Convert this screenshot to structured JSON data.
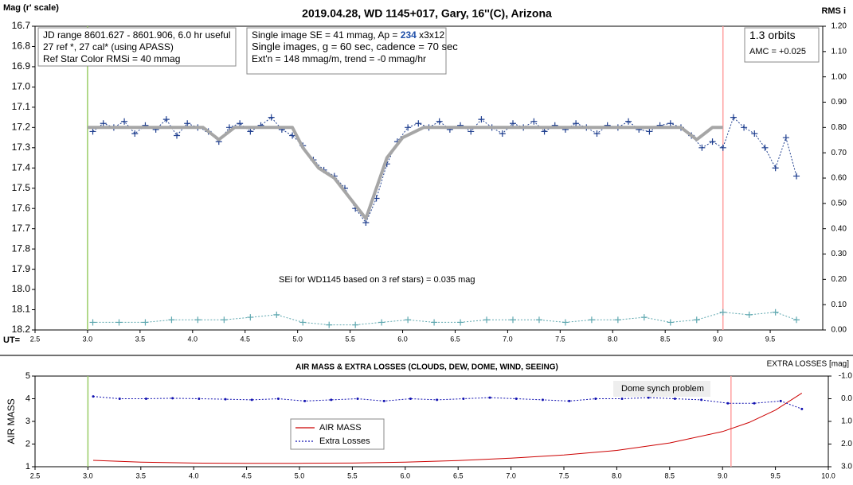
{
  "chart_data": [
    {
      "type": "line",
      "title": "2019.04.28, WD 1145+017, Gary, 16''(C), Arizona",
      "ylabel": "Mag (r' scale)",
      "y2label": "RMS i",
      "xlabel": "UT=",
      "xlim": [
        2.5,
        10
      ],
      "ylim": [
        16.7,
        18.2
      ],
      "y_inverted": true,
      "y2lim": [
        0,
        1.2
      ],
      "xticks": [
        2.5,
        {
          "value": 3,
          "label": "3.0"
        },
        3.5,
        {
          "value": 4,
          "label": "4.0"
        },
        4.5,
        {
          "value": 5,
          "label": "5.0"
        },
        5.5,
        {
          "value": 6,
          "label": "6.0"
        },
        6.5,
        {
          "value": 7,
          "label": "7.0"
        },
        7.5,
        {
          "value": 8,
          "label": "8.0"
        },
        8.5,
        {
          "value": 9,
          "label": "9.0"
        },
        9.5
      ],
      "yticks": [
        16.7,
        16.8,
        16.9,
        {
          "value": 17,
          "label": "17.0"
        },
        17.1,
        17.2,
        17.3,
        17.4,
        17.5,
        17.6,
        17.7,
        17.8,
        17.9,
        {
          "value": 18,
          "label": "18.0"
        },
        18.1,
        18.2
      ],
      "y2ticks": [
        {
          "value": 0,
          "label": "0.00"
        },
        {
          "value": 0.1,
          "label": "0.10"
        },
        {
          "value": 0.2,
          "label": "0.20"
        },
        {
          "value": 0.3,
          "label": "0.30"
        },
        {
          "value": 0.4,
          "label": "0.40"
        },
        {
          "value": 0.5,
          "label": "0.50"
        },
        {
          "value": 0.6,
          "label": "0.60"
        },
        {
          "value": 0.7,
          "label": "0.70"
        },
        {
          "value": 0.8,
          "label": "0.80"
        },
        {
          "value": 0.9,
          "label": "0.90"
        },
        {
          "value": 1,
          "label": "1.00"
        },
        {
          "value": 1.1,
          "label": "1.10"
        },
        {
          "value": 1.2,
          "label": "1.20"
        }
      ],
      "vlines": [
        {
          "x": 3.0,
          "color": "#99cc66"
        },
        {
          "x": 9.05,
          "color": "#ff9f9f"
        }
      ],
      "series": [
        {
          "color": "#1f3f8f",
          "marker": "plus",
          "dashed": true,
          "width": 1,
          "x": [
            3.05,
            3.15,
            3.25,
            3.35,
            3.45,
            3.55,
            3.65,
            3.75,
            3.85,
            3.95,
            4.05,
            4.15,
            4.25,
            4.35,
            4.45,
            4.55,
            4.65,
            4.75,
            4.85,
            4.95,
            5.05,
            5.15,
            5.25,
            5.35,
            5.45,
            5.55,
            5.65,
            5.75,
            5.85,
            5.95,
            6.05,
            6.15,
            6.25,
            6.35,
            6.45,
            6.55,
            6.65,
            6.75,
            6.85,
            6.95,
            7.05,
            7.15,
            7.25,
            7.35,
            7.45,
            7.55,
            7.65,
            7.75,
            7.85,
            7.95,
            8.05,
            8.15,
            8.25,
            8.35,
            8.45,
            8.55,
            8.65,
            8.75,
            8.85,
            8.95,
            9.05,
            9.15,
            9.25,
            9.35,
            9.45,
            9.55,
            9.65,
            9.75
          ],
          "values": [
            17.22,
            17.18,
            17.2,
            17.17,
            17.23,
            17.19,
            17.21,
            17.16,
            17.24,
            17.18,
            17.2,
            17.22,
            17.27,
            17.2,
            17.18,
            17.22,
            17.19,
            17.15,
            17.21,
            17.24,
            17.29,
            17.36,
            17.41,
            17.44,
            17.5,
            17.6,
            17.67,
            17.55,
            17.38,
            17.27,
            17.2,
            17.18,
            17.2,
            17.17,
            17.21,
            17.19,
            17.22,
            17.16,
            17.2,
            17.23,
            17.18,
            17.2,
            17.17,
            17.22,
            17.19,
            17.21,
            17.18,
            17.2,
            17.23,
            17.19,
            17.2,
            17.17,
            17.21,
            17.22,
            17.19,
            17.18,
            17.2,
            17.24,
            17.3,
            17.27,
            17.3,
            17.15,
            17.2,
            17.23,
            17.3,
            17.4,
            17.25,
            17.44
          ]
        },
        {
          "color": "#a6a6a6",
          "width": 4,
          "x": [
            3.0,
            4.1,
            4.25,
            4.4,
            4.95,
            5.05,
            5.2,
            5.35,
            5.5,
            5.65,
            5.75,
            5.85,
            6.0,
            6.2,
            8.65,
            8.8,
            8.95,
            9.05
          ],
          "values": [
            17.2,
            17.2,
            17.26,
            17.2,
            17.2,
            17.3,
            17.4,
            17.45,
            17.55,
            17.65,
            17.5,
            17.35,
            17.25,
            17.2,
            17.2,
            17.26,
            17.2,
            17.2
          ]
        },
        {
          "color": "#5fa8b0",
          "marker": "plus",
          "dashed": true,
          "width": 1,
          "axis": "y2",
          "x": [
            3.05,
            3.3,
            3.55,
            3.8,
            4.05,
            4.3,
            4.55,
            4.8,
            5.05,
            5.3,
            5.55,
            5.8,
            6.05,
            6.3,
            6.55,
            6.8,
            7.05,
            7.3,
            7.55,
            7.8,
            8.05,
            8.3,
            8.55,
            8.8,
            9.05,
            9.3,
            9.55,
            9.75
          ],
          "values": [
            0.03,
            0.03,
            0.03,
            0.04,
            0.04,
            0.04,
            0.05,
            0.06,
            0.03,
            0.02,
            0.02,
            0.03,
            0.04,
            0.03,
            0.03,
            0.04,
            0.04,
            0.04,
            0.03,
            0.04,
            0.04,
            0.05,
            0.03,
            0.04,
            0.07,
            0.06,
            0.07,
            0.04
          ]
        }
      ],
      "boxes": [
        {
          "lines": [
            [
              "JD range 8601.627 - 8601.906, 6.0 hr useful"
            ],
            [
              "27 ref *, 27 cal* (using APASS)"
            ],
            [
              "Ref Star Color RMSi = 40 mmag"
            ]
          ]
        },
        {
          "lines": [
            [
              "Single image SE = 41 mmag, Ap = ",
              "234",
              " x3x12"
            ],
            [
              "Single images, g = 60 sec, cadence = 70 sec"
            ],
            [
              "Ext'n = 148 mmag/m, trend = -0 mmag/hr"
            ]
          ]
        },
        {
          "lines": [
            [
              "1.3 orbits"
            ],
            [
              "AMC = +0.025"
            ]
          ]
        }
      ],
      "annotations": [
        "SEi for WD1145 based on 3 ref stars) = 0.035 mag"
      ]
    },
    {
      "type": "line",
      "title": "AIR MASS & EXTRA LOSSES (CLOUDS, DEW, DOME, WIND, SEEING)",
      "ylabel": "AIR MASS",
      "y2label": "EXTRA LOSSES [mag]",
      "xlim": [
        2.5,
        10
      ],
      "ylim": [
        1,
        5
      ],
      "y2lim": [
        -1,
        3
      ],
      "y2_inverted": true,
      "xticks": [
        2.5,
        {
          "value": 3,
          "label": "3.0"
        },
        3.5,
        {
          "value": 4,
          "label": "4.0"
        },
        4.5,
        {
          "value": 5,
          "label": "5.0"
        },
        5.5,
        {
          "value": 6,
          "label": "6.0"
        },
        6.5,
        {
          "value": 7,
          "label": "7.0"
        },
        7.5,
        {
          "value": 8,
          "label": "8.0"
        },
        8.5,
        {
          "value": 9,
          "label": "9.0"
        },
        9.5,
        {
          "value": 10,
          "label": "10.0"
        }
      ],
      "yticks": [
        1,
        2,
        3,
        4,
        5
      ],
      "y2ticks": [
        {
          "value": -1,
          "label": "-1.0"
        },
        {
          "value": 0,
          "label": "0.0"
        },
        {
          "value": 1,
          "label": "1.0"
        },
        {
          "value": 2,
          "label": "2.0"
        },
        {
          "value": 3,
          "label": "3.0"
        }
      ],
      "vlines": [
        {
          "x": 3.0,
          "color": "#99cc66"
        },
        {
          "x": 9.08,
          "color": "#ff9f9f"
        }
      ],
      "legend": true,
      "series": [
        {
          "name": "AIR MASS",
          "color": "#cc0000",
          "width": 1,
          "x": [
            3.05,
            3.5,
            4.0,
            4.5,
            5.0,
            5.5,
            6.0,
            6.5,
            7.0,
            7.5,
            8.0,
            8.5,
            9.0,
            9.25,
            9.5,
            9.75
          ],
          "values": [
            1.28,
            1.2,
            1.16,
            1.15,
            1.15,
            1.16,
            1.2,
            1.27,
            1.38,
            1.52,
            1.72,
            2.05,
            2.55,
            2.95,
            3.5,
            4.25
          ]
        },
        {
          "name": "Extra Losses",
          "color": "#1010b0",
          "marker": "dot",
          "dashed": true,
          "width": 1,
          "axis": "y2",
          "x": [
            3.05,
            3.3,
            3.55,
            3.8,
            4.05,
            4.3,
            4.55,
            4.8,
            5.05,
            5.3,
            5.55,
            5.8,
            6.05,
            6.3,
            6.55,
            6.8,
            7.05,
            7.3,
            7.55,
            7.8,
            8.05,
            8.3,
            8.55,
            8.8,
            9.05,
            9.3,
            9.55,
            9.75
          ],
          "values": [
            -0.1,
            0.0,
            0.0,
            -0.02,
            0.0,
            0.02,
            0.05,
            0.0,
            0.1,
            0.05,
            0.0,
            0.1,
            0.0,
            0.05,
            0.0,
            -0.05,
            0.0,
            0.05,
            0.1,
            0.0,
            0.0,
            -0.05,
            0.0,
            0.05,
            0.2,
            0.2,
            0.1,
            0.45
          ]
        }
      ],
      "annotations": [
        "Dome synch problem"
      ]
    }
  ]
}
